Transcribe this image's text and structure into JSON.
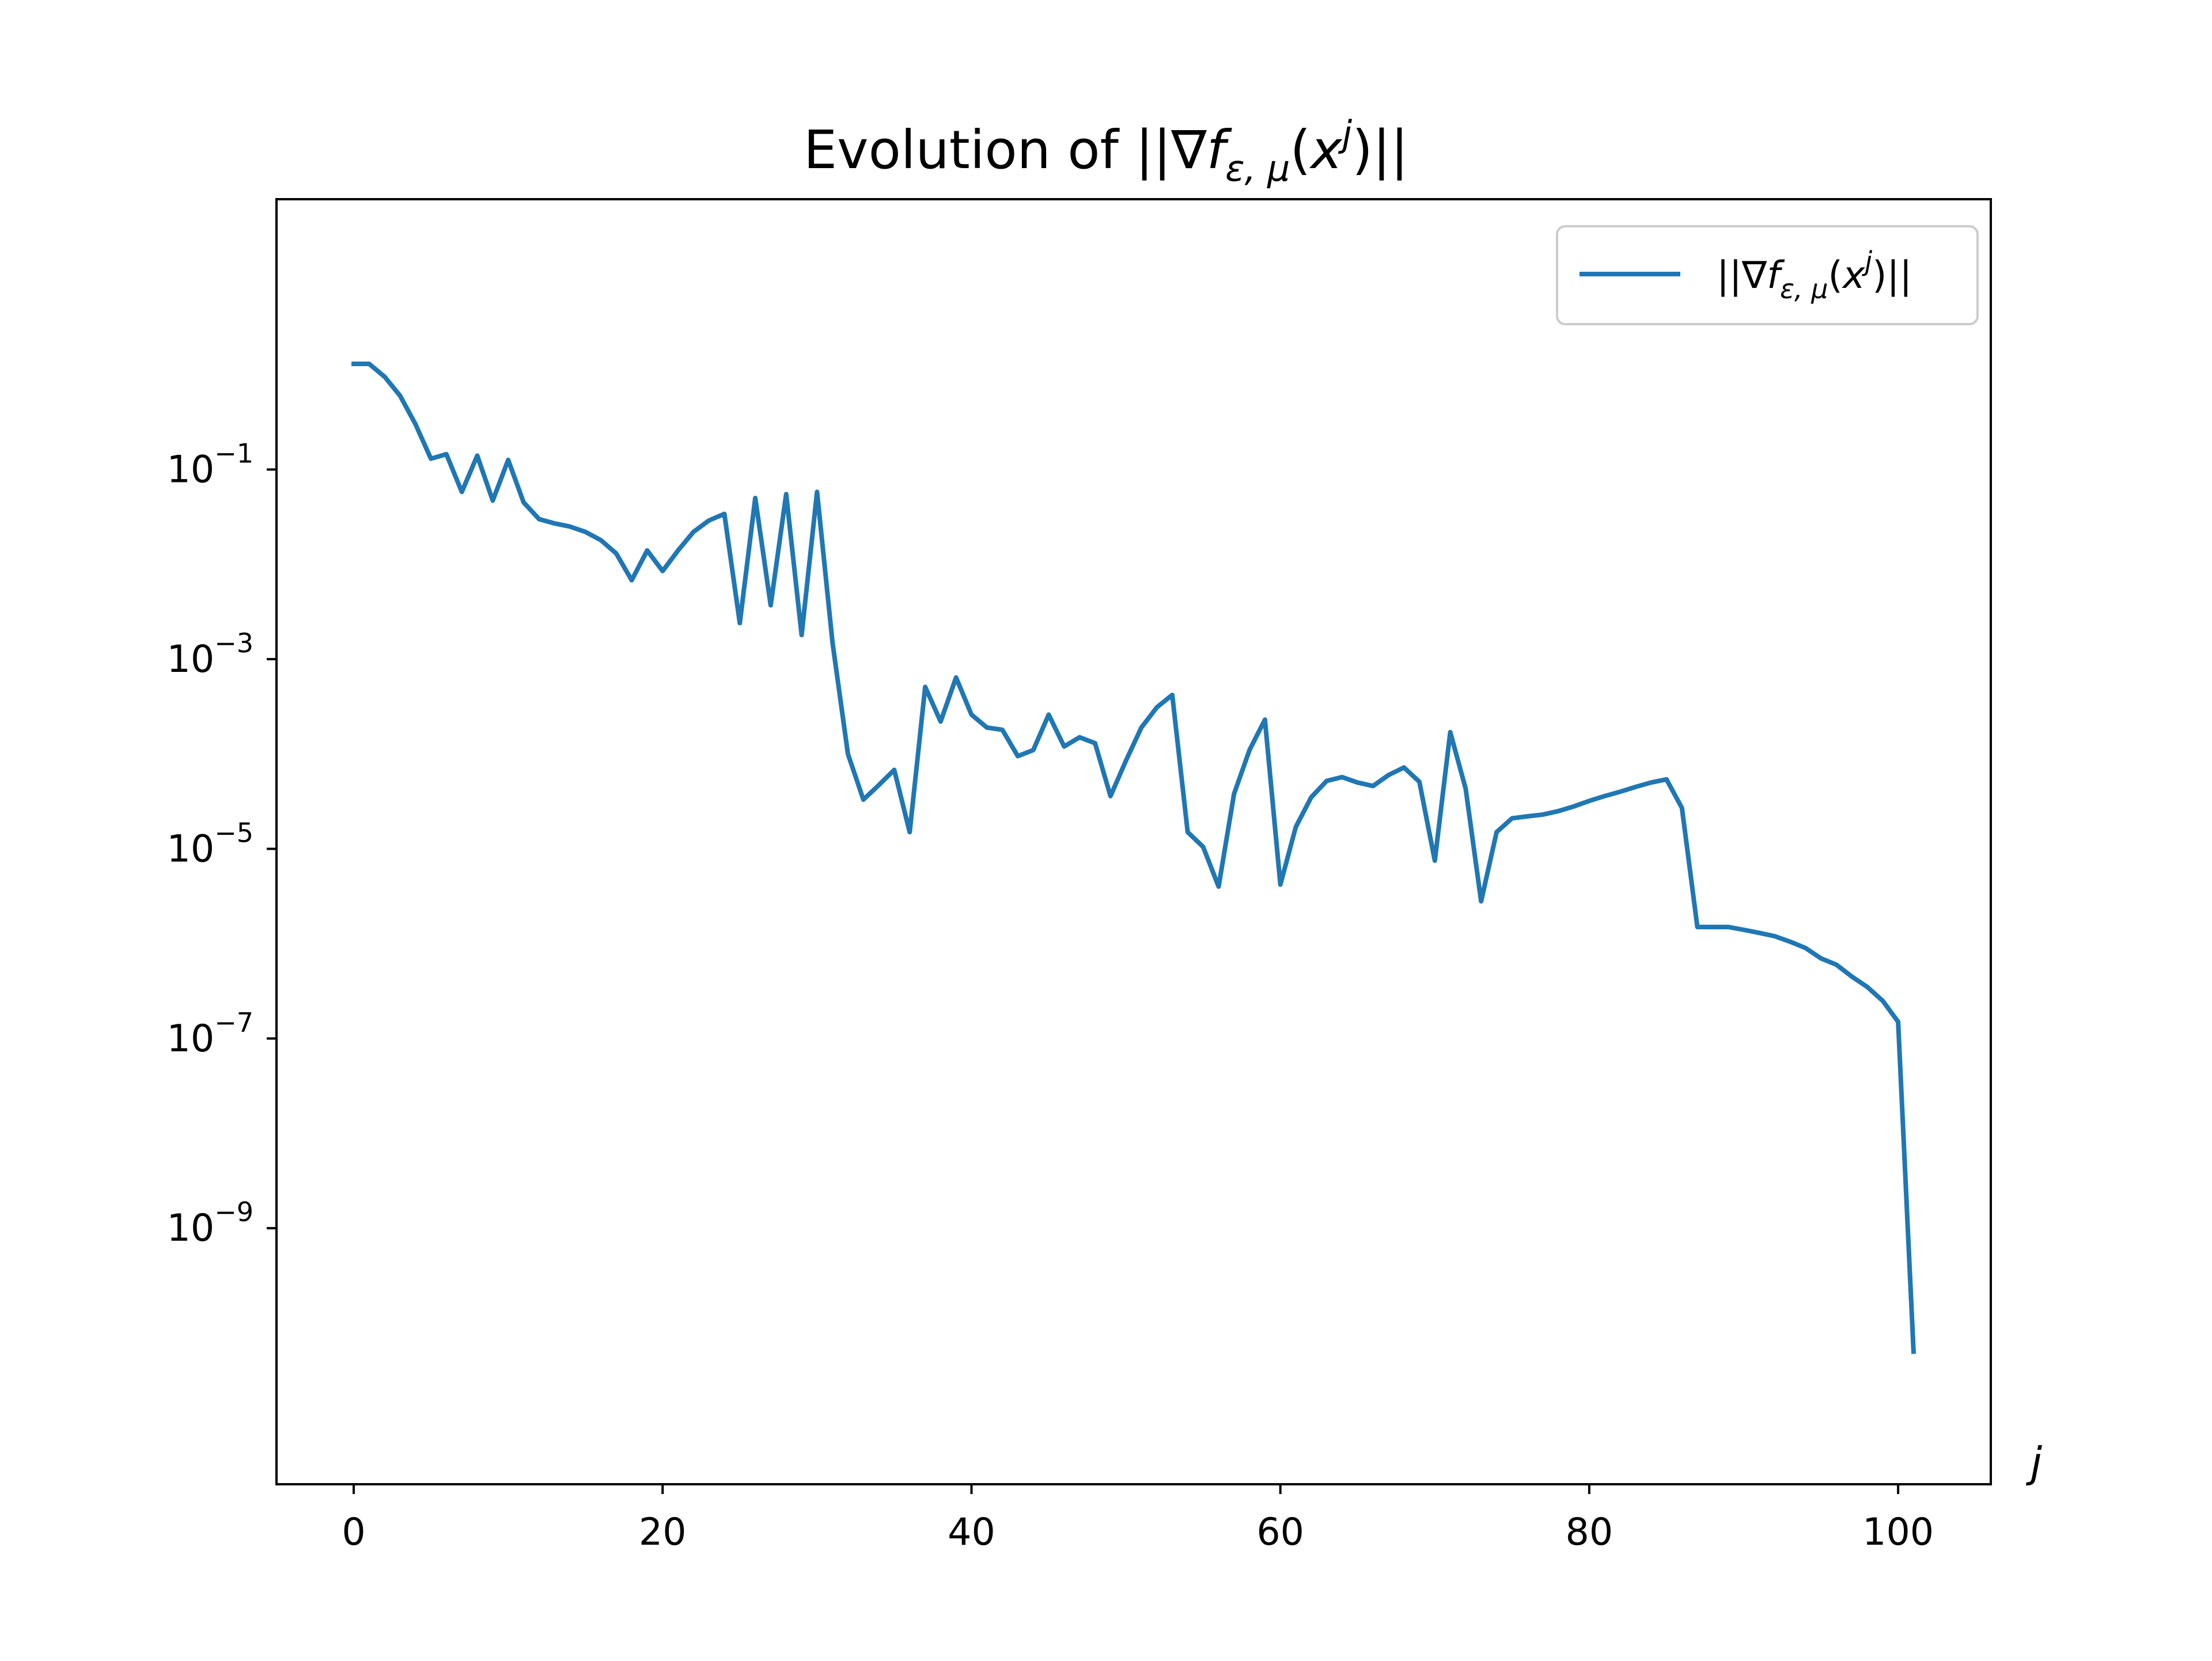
{
  "chart_data": {
    "type": "line",
    "title": "Evolution of ||∇f_{ε,μ}(x^j)||",
    "title_parts": {
      "prefix": "Evolution of ||∇",
      "f": "f",
      "sub": "ε, μ",
      "open": "(",
      "x": "x",
      "sup": "j",
      "close": ")||"
    },
    "xlabel": "j",
    "ylabel": "",
    "yscale": "log",
    "grid": false,
    "legend_placement": "top-right",
    "xlim": [
      -5,
      106
    ],
    "ylim_exponent": [
      -11.7,
      1.85
    ],
    "x_ticks": [
      0,
      20,
      40,
      60,
      80,
      100
    ],
    "y_ticks": [
      {
        "base": "10",
        "exp": "−1",
        "value": -1
      },
      {
        "base": "10",
        "exp": "−3",
        "value": -3
      },
      {
        "base": "10",
        "exp": "−5",
        "value": -5
      },
      {
        "base": "10",
        "exp": "−7",
        "value": -7
      },
      {
        "base": "10",
        "exp": "−9",
        "value": -9
      }
    ],
    "series": [
      {
        "name": "||∇f_{ε,μ}(x^j)||",
        "color": "#1f77b4",
        "x": [
          0,
          1,
          2,
          3,
          4,
          5,
          6,
          7,
          8,
          9,
          10,
          11,
          12,
          13,
          14,
          15,
          16,
          17,
          18,
          19,
          20,
          21,
          22,
          23,
          24,
          25,
          26,
          27,
          28,
          29,
          30,
          31,
          32,
          33,
          34,
          35,
          36,
          37,
          38,
          39,
          40,
          41,
          42,
          43,
          44,
          45,
          46,
          47,
          48,
          49,
          50,
          51,
          52,
          53,
          54,
          55,
          56,
          57,
          58,
          59,
          60,
          61,
          62,
          63,
          64,
          65,
          66,
          67,
          68,
          69,
          70,
          71,
          72,
          73,
          74,
          75,
          76,
          77,
          78,
          79,
          80,
          81,
          82,
          83,
          84,
          85,
          86,
          87,
          88,
          89,
          90,
          91,
          92,
          93,
          94,
          95,
          96,
          97,
          98,
          99,
          100,
          101
        ],
        "y": [
          1.3,
          1.3,
          0.95,
          0.6,
          0.3,
          0.13,
          0.145,
          0.058,
          0.14,
          0.047,
          0.126,
          0.045,
          0.03,
          0.027,
          0.025,
          0.022,
          0.018,
          0.013,
          0.0068,
          0.014,
          0.0085,
          0.014,
          0.022,
          0.029,
          0.034,
          0.0024,
          0.05,
          0.0037,
          0.055,
          0.0018,
          0.058,
          0.0015,
          0.0001,
          3.3e-05,
          4.7e-05,
          6.8e-05,
          1.5e-05,
          0.00051,
          0.00022,
          0.00064,
          0.00026,
          0.00019,
          0.00018,
          9.5e-05,
          0.00011,
          0.00026,
          0.00012,
          0.00015,
          0.00013,
          3.6e-05,
          8.5e-05,
          0.00019,
          0.00031,
          0.00042,
          1.5e-05,
          1.05e-05,
          4e-06,
          3.8e-05,
          0.00011,
          0.00023,
          4.2e-06,
          1.7e-05,
          3.5e-05,
          5.2e-05,
          5.7e-05,
          5e-05,
          4.6e-05,
          6e-05,
          7.2e-05,
          5.1e-05,
          7.5e-06,
          0.00017,
          4.3e-05,
          2.8e-06,
          1.5e-05,
          2.1e-05,
          2.2e-05,
          2.3e-05,
          2.5e-05,
          2.8e-05,
          3.2e-05,
          3.6e-05,
          4e-05,
          4.5e-05,
          5e-05,
          5.4e-05,
          2.7e-05,
          1.5e-06,
          1.5e-06,
          1.5e-06,
          1.4e-06,
          1.3e-06,
          1.2e-06,
          1.05e-06,
          9e-07,
          7e-07,
          6e-07,
          4.5e-07,
          3.5e-07,
          2.5e-07,
          1.5e-07,
          5e-11
        ]
      }
    ]
  },
  "legend": {
    "prefix": "||∇",
    "f": "f",
    "sub": "ε, μ",
    "open": "(",
    "x": "x",
    "sup": "j",
    "close": ")||"
  }
}
